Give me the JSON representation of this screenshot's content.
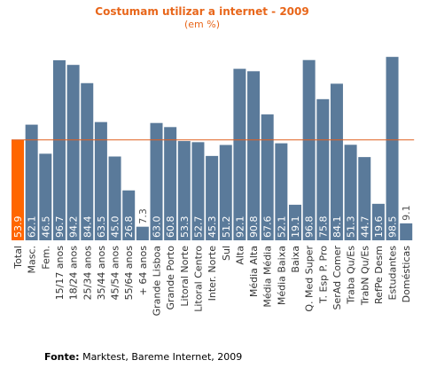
{
  "chart_data": {
    "type": "bar",
    "title": "Costumam utilizar a internet  - 2009",
    "subtitle": "(em %)",
    "categories": [
      "Total",
      "Masc.",
      "Fem.",
      "15/17 anos",
      "18/24 anos",
      "25/34 anos",
      "35/44 anos",
      "45/54 anos",
      "55/64 anos",
      "+ 64 anos",
      "Grande Lisboa",
      "Grande Porto",
      "Litoral Norte",
      "Litoral Centro",
      "Inter. Norte",
      "Sul",
      "Alta",
      "Média Alta",
      "Média Média",
      "Média Baixa",
      "Baixa",
      "Q. Med Super",
      "T. Esp P. Pro",
      "SerAd Comer",
      "Traba Qu/Es",
      "TrabN Qu/Es",
      "RefPe Desm",
      "Estudantes",
      "Domésticas"
    ],
    "values": [
      53.9,
      62.1,
      46.5,
      96.7,
      94.2,
      84.4,
      63.5,
      45.0,
      26.8,
      7.3,
      63.0,
      60.8,
      53.3,
      52.7,
      45.3,
      51.2,
      92.1,
      90.8,
      67.6,
      52.1,
      19.1,
      96.8,
      75.8,
      84.1,
      51.3,
      44.7,
      19.6,
      98.5,
      9.1
    ],
    "value_labels": [
      "53.9",
      "62.1",
      "46.5",
      "96.7",
      "94.2",
      "84.4",
      "63.5",
      "45.0",
      "26.8",
      "7.3",
      "63.0",
      "60.8",
      "53.3",
      "52.7",
      "45.3",
      "51.2",
      "92.1",
      "90.8",
      "67.6",
      "52.1",
      "19.1",
      "96.8",
      "75.8",
      "84.1",
      "51.3",
      "44.7",
      "19.6",
      "98.5",
      "9.1"
    ],
    "highlight_index": 0,
    "reference_value": 53.9,
    "ylim": [
      0,
      100
    ],
    "grid": false,
    "colors": {
      "highlight": "#ff6600",
      "bar": "#5a7a9a",
      "reference_line": "#e06020",
      "title": "#e8661a",
      "label_on_bar": "#ffffff",
      "label_above": "#555555",
      "axis": "#888888"
    }
  },
  "footer": {
    "bold": "Fonte:",
    "text": " Marktest, Bareme Internet, 2009"
  }
}
